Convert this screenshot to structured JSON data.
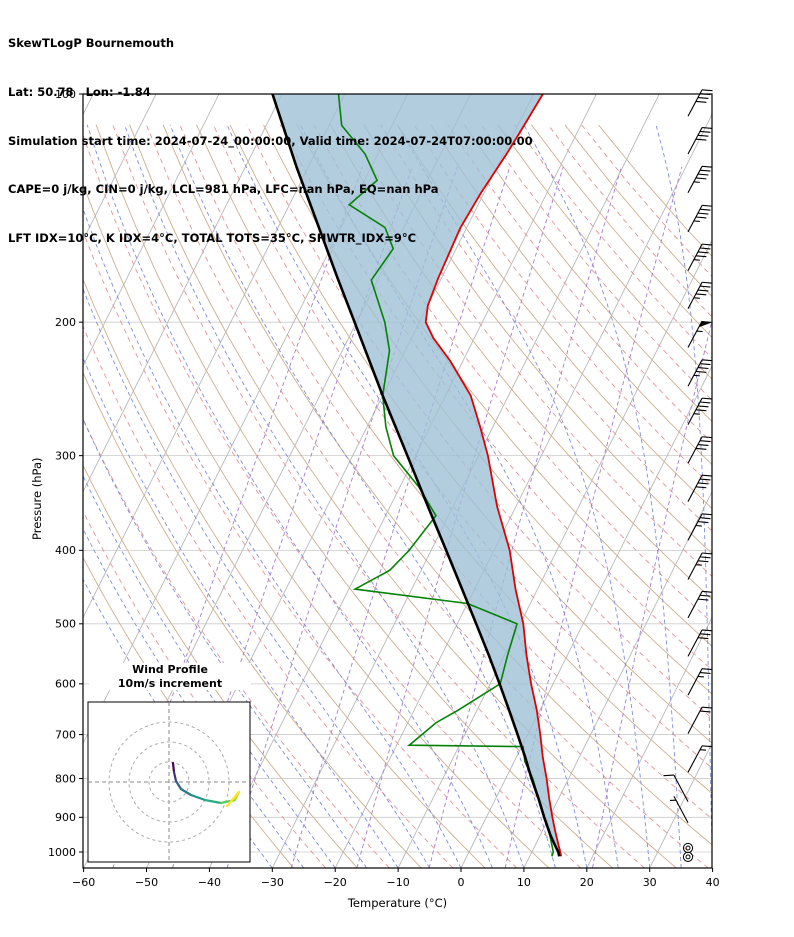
{
  "header": {
    "title": "SkewTLogP Bournemouth",
    "location": "Lat: 50.78   Lon: -1.84",
    "times": "Simulation start time: 2024-07-24_00:00:00, Valid time: 2024-07-24T07:00:00.00",
    "stability1": "CAPE=0 j/kg, CIN=0 j/kg, LCL=981 hPa, LFC=nan hPa, EQ=nan hPa",
    "stability2": "LFT IDX=10°C, K IDX=4°C, TOTAL TOTS=35°C, SHWTR_IDX=9°C"
  },
  "axes": {
    "x_label": "Temperature (°C)",
    "y_label": "Pressure (hPa)",
    "pressure_ticks": [
      100,
      200,
      300,
      400,
      500,
      600,
      700,
      800,
      900,
      1000
    ],
    "temperature_ticks": [
      -60,
      -50,
      -40,
      -30,
      -20,
      -10,
      0,
      10,
      20,
      30,
      40
    ]
  },
  "inset": {
    "title_line1": "Wind Profile",
    "title_line2": "10m/s increment"
  },
  "chart_data": {
    "type": "line",
    "subtype": "skewT-logP sounding",
    "title": "SkewTLogP Bournemouth",
    "xlabel": "Temperature (°C)",
    "ylabel": "Pressure (hPa)",
    "xlim": [
      -60,
      40
    ],
    "ylim": [
      1050,
      100
    ],
    "grid": {
      "isotherms": {
        "start": -160,
        "end": 40,
        "step": 10,
        "color": "#b8b8b8"
      },
      "isobars": {
        "levels": [
          100,
          200,
          300,
          400,
          500,
          600,
          700,
          800,
          900,
          1000
        ],
        "color": "#cccccc"
      },
      "dry_adiabats_solid": {
        "start": -30,
        "end": 170,
        "step": 10,
        "color": "#cfae8e"
      },
      "dry_adiabats_dashed": {
        "start": -25,
        "end": 165,
        "step": 10,
        "color": "#e59494"
      },
      "moist_adiabats": {
        "start": -30,
        "end": 40,
        "step": 5,
        "color": "#7f8ed6"
      },
      "mixing_ratios_gkg": {
        "values": [
          0.02,
          0.06,
          0.15,
          0.4,
          1,
          2.5,
          6,
          15
        ],
        "color": "#a67cc9"
      }
    },
    "series": [
      {
        "name": "temperature",
        "color": "#e00000",
        "points": [
          [
            1013,
            15
          ],
          [
            1000,
            14.5
          ],
          [
            950,
            12.5
          ],
          [
            925,
            11.5
          ],
          [
            900,
            10.5
          ],
          [
            850,
            8.5
          ],
          [
            800,
            6.5
          ],
          [
            750,
            4.2
          ],
          [
            700,
            2
          ],
          [
            650,
            -0.5
          ],
          [
            600,
            -3.5
          ],
          [
            550,
            -6.5
          ],
          [
            500,
            -9.5
          ],
          [
            450,
            -13.5
          ],
          [
            400,
            -17.5
          ],
          [
            350,
            -23
          ],
          [
            300,
            -28.5
          ],
          [
            275,
            -32
          ],
          [
            250,
            -36
          ],
          [
            225,
            -42
          ],
          [
            210,
            -46.5
          ],
          [
            200,
            -49
          ],
          [
            190,
            -50
          ],
          [
            175,
            -50.5
          ],
          [
            150,
            -51
          ],
          [
            135,
            -50.5
          ],
          [
            120,
            -49.5
          ],
          [
            110,
            -49
          ],
          [
            100,
            -48.5
          ]
        ]
      },
      {
        "name": "dewpoint",
        "color": "#058205",
        "points": [
          [
            1013,
            13.5
          ],
          [
            1000,
            13.4
          ],
          [
            950,
            11.5
          ],
          [
            900,
            9.2
          ],
          [
            850,
            6.8
          ],
          [
            800,
            4.3
          ],
          [
            760,
            1.7
          ],
          [
            726,
            0.2
          ],
          [
            723,
            -18
          ],
          [
            675,
            -15.5
          ],
          [
            650,
            -13
          ],
          [
            600,
            -8.4
          ],
          [
            550,
            -9.5
          ],
          [
            500,
            -10.5
          ],
          [
            470,
            -20
          ],
          [
            450,
            -39
          ],
          [
            425,
            -35
          ],
          [
            400,
            -33.5
          ],
          [
            360,
            -32
          ],
          [
            330,
            -37
          ],
          [
            300,
            -43.5
          ],
          [
            275,
            -47
          ],
          [
            250,
            -50
          ],
          [
            218,
            -52.5
          ],
          [
            200,
            -55.5
          ],
          [
            176,
            -61
          ],
          [
            160,
            -60
          ],
          [
            150,
            -63
          ],
          [
            140,
            -70.5
          ],
          [
            130,
            -68
          ],
          [
            120,
            -72
          ],
          [
            110,
            -78
          ],
          [
            100,
            -81
          ]
        ]
      },
      {
        "name": "parcel",
        "color": "#000000",
        "points": [
          [
            1013,
            14.7
          ],
          [
            1000,
            14.2
          ],
          [
            981,
            13.2
          ],
          [
            950,
            11.6
          ],
          [
            900,
            9.2
          ],
          [
            850,
            6.8
          ],
          [
            800,
            4.1
          ],
          [
            750,
            1.4
          ],
          [
            700,
            -1.6
          ],
          [
            650,
            -4.9
          ],
          [
            600,
            -8.5
          ],
          [
            550,
            -12.5
          ],
          [
            500,
            -17
          ],
          [
            450,
            -22
          ],
          [
            400,
            -27.6
          ],
          [
            350,
            -34
          ],
          [
            300,
            -41.3
          ],
          [
            250,
            -50
          ],
          [
            200,
            -60.3
          ],
          [
            175,
            -66.5
          ],
          [
            150,
            -73.5
          ],
          [
            125,
            -81.8
          ],
          [
            100,
            -91.5
          ]
        ]
      }
    ],
    "shaded_region": {
      "between": [
        "parcel",
        "temperature"
      ],
      "fill": "#9fc0d6",
      "opacity": 0.8
    },
    "wind_barbs": {
      "units": "kt",
      "staff_angle_default_deg": 62,
      "levels": [
        {
          "p": 107,
          "speed": 40,
          "ang": 62
        },
        {
          "p": 120,
          "speed": 40,
          "ang": 62
        },
        {
          "p": 135,
          "speed": 45,
          "ang": 62
        },
        {
          "p": 152,
          "speed": 45,
          "ang": 62
        },
        {
          "p": 171,
          "speed": 45,
          "ang": 62
        },
        {
          "p": 192,
          "speed": 45,
          "ang": 62
        },
        {
          "p": 216,
          "speed": 55,
          "ang": 62
        },
        {
          "p": 243,
          "speed": 45,
          "ang": 62
        },
        {
          "p": 273,
          "speed": 45,
          "ang": 62
        },
        {
          "p": 307,
          "speed": 40,
          "ang": 62
        },
        {
          "p": 345,
          "speed": 40,
          "ang": 62
        },
        {
          "p": 388,
          "speed": 35,
          "ang": 62
        },
        {
          "p": 437,
          "speed": 35,
          "ang": 62
        },
        {
          "p": 491,
          "speed": 30,
          "ang": 62
        },
        {
          "p": 552,
          "speed": 30,
          "ang": 62
        },
        {
          "p": 621,
          "speed": 25,
          "ang": 62
        },
        {
          "p": 698,
          "speed": 20,
          "ang": 62
        },
        {
          "p": 785,
          "speed": 15,
          "ang": 62
        },
        {
          "p": 858,
          "speed": 10,
          "ang": 118
        },
        {
          "p": 915,
          "speed": 5,
          "ang": 118
        },
        {
          "p": 988,
          "speed": 0,
          "ang": 0
        },
        {
          "p": 1015,
          "speed": 0,
          "ang": 0
        }
      ]
    },
    "hodograph": {
      "units": "m/s",
      "ring_increment": 10,
      "rings": [
        10,
        20,
        30
      ],
      "points": [
        {
          "u": 2.0,
          "v": 9.5,
          "c": "#440154"
        },
        {
          "u": 2.5,
          "v": 5.0,
          "c": "#46327e"
        },
        {
          "u": 3.5,
          "v": 0.5,
          "c": "#375a8c"
        },
        {
          "u": 6.0,
          "v": -3.5,
          "c": "#2b748e"
        },
        {
          "u": 11.0,
          "v": -6.5,
          "c": "#21918c"
        },
        {
          "u": 18.0,
          "v": -9.0,
          "c": "#27ad81"
        },
        {
          "u": 26.0,
          "v": -10.5,
          "c": "#5ec962"
        },
        {
          "u": 33.0,
          "v": -9.0,
          "c": "#aadc32"
        },
        {
          "u": 35.0,
          "v": -5.0,
          "c": "#fde725"
        },
        {
          "u": 29.0,
          "v": -12.0,
          "c": "#2a9d8f"
        }
      ]
    }
  }
}
